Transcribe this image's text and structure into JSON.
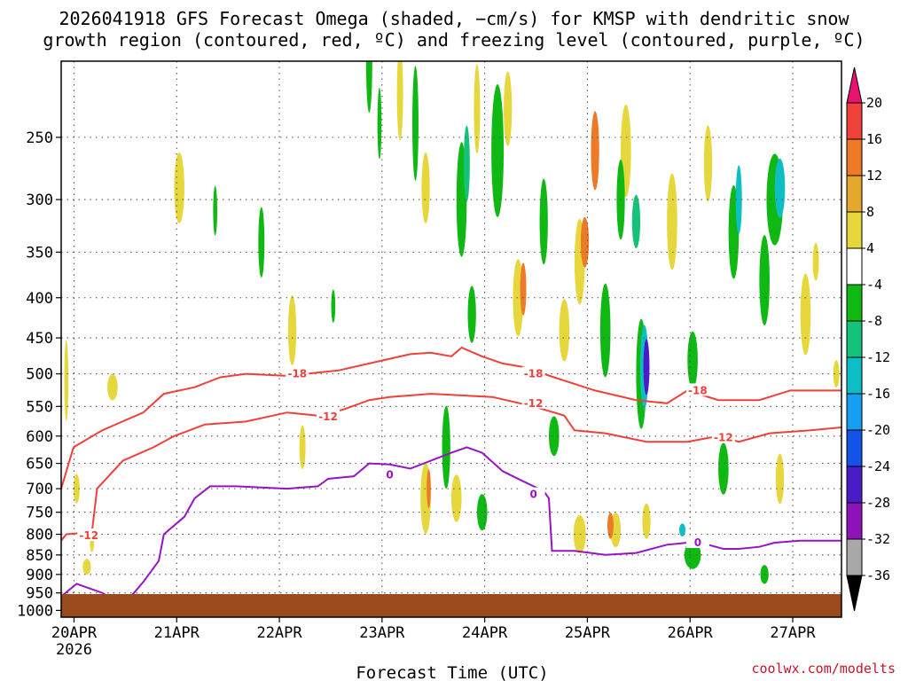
{
  "chart_data": {
    "type": "time-height",
    "title_line1": "2026041918 GFS Forecast Omega (shaded, −cm/s) for KMSP with dendritic snow",
    "title_line2": "growth region (contoured, red, ºC) and freezing level (contoured, purple, ºC)",
    "xlabel": "Forecast Time (UTC)",
    "credit": "coolwx.com/modelts",
    "x_ticks": [
      {
        "label": "20APR",
        "sub": "2026",
        "day": 0.125
      },
      {
        "label": "21APR",
        "day": 1.125
      },
      {
        "label": "22APR",
        "day": 2.125
      },
      {
        "label": "23APR",
        "day": 3.125
      },
      {
        "label": "24APR",
        "day": 4.125
      },
      {
        "label": "25APR",
        "day": 5.125
      },
      {
        "label": "26APR",
        "day": 6.125
      },
      {
        "label": "27APR",
        "day": 7.125
      }
    ],
    "x_range_days": [
      0,
      7.6
    ],
    "y_ticks": [
      "250",
      "300",
      "350",
      "400",
      "450",
      "500",
      "550",
      "600",
      "650",
      "700",
      "750",
      "800",
      "850",
      "900",
      "950",
      "1000"
    ],
    "y_range_hpa": [
      200,
      1020
    ],
    "ground_color": "#9b4a1e",
    "colorbar": {
      "labels": [
        "20",
        "16",
        "12",
        "8",
        "4",
        "-4",
        "-8",
        "-12",
        "-16",
        "-20",
        "-24",
        "-28",
        "-32",
        "-36"
      ],
      "colors": [
        "#e8136e",
        "#f0413a",
        "#ec7a26",
        "#e4a82e",
        "#e6d83c",
        "#ffffff",
        "#10b814",
        "#14c27a",
        "#0dbfc4",
        "#169ff0",
        "#1552e6",
        "#4a1cc8",
        "#8c14b8",
        "#a8a8a8",
        "#000000"
      ]
    },
    "series": [
      {
        "name": "-18C isotherm",
        "color": "#f0403a",
        "label": "-18",
        "points": [
          [
            0,
            700
          ],
          [
            0.12,
            620
          ],
          [
            0.4,
            590
          ],
          [
            0.8,
            560
          ],
          [
            1.0,
            530
          ],
          [
            1.3,
            520
          ],
          [
            1.55,
            505
          ],
          [
            1.8,
            500
          ],
          [
            2.2,
            503
          ],
          [
            2.7,
            495
          ],
          [
            3.0,
            485
          ],
          [
            3.4,
            472
          ],
          [
            3.6,
            470
          ],
          [
            3.8,
            475
          ],
          [
            3.9,
            463
          ],
          [
            4.1,
            475
          ],
          [
            4.3,
            485
          ],
          [
            4.5,
            490
          ],
          [
            4.8,
            505
          ],
          [
            5.2,
            525
          ],
          [
            5.6,
            540
          ],
          [
            5.9,
            545
          ],
          [
            6.1,
            525
          ],
          [
            6.4,
            540
          ],
          [
            6.8,
            540
          ],
          [
            7.1,
            525
          ],
          [
            7.6,
            525
          ]
        ],
        "labels": [
          [
            2.3,
            500
          ],
          [
            4.6,
            500
          ],
          [
            6.2,
            525
          ]
        ]
      },
      {
        "name": "-12C isotherm",
        "color": "#f0403a",
        "label": "-12",
        "points": [
          [
            0,
            815
          ],
          [
            0.05,
            800
          ],
          [
            0.3,
            795
          ],
          [
            0.35,
            700
          ],
          [
            0.6,
            645
          ],
          [
            0.9,
            620
          ],
          [
            1.1,
            600
          ],
          [
            1.4,
            580
          ],
          [
            1.8,
            575
          ],
          [
            2.2,
            560
          ],
          [
            2.5,
            565
          ],
          [
            2.75,
            555
          ],
          [
            3.0,
            540
          ],
          [
            3.2,
            535
          ],
          [
            3.6,
            530
          ],
          [
            4.2,
            535
          ],
          [
            4.6,
            550
          ],
          [
            4.9,
            565
          ],
          [
            5.0,
            590
          ],
          [
            5.3,
            595
          ],
          [
            5.7,
            610
          ],
          [
            6.1,
            610
          ],
          [
            6.4,
            600
          ],
          [
            6.6,
            610
          ],
          [
            6.9,
            595
          ],
          [
            7.3,
            590
          ],
          [
            7.6,
            585
          ]
        ],
        "labels": [
          [
            0.27,
            803
          ],
          [
            2.6,
            567
          ],
          [
            4.6,
            545
          ],
          [
            6.45,
            603
          ]
        ]
      },
      {
        "name": "0C freezing level",
        "color": "#9614c4",
        "label": "0",
        "points": [
          [
            0,
            960
          ],
          [
            0.15,
            925
          ],
          [
            0.4,
            950
          ],
          [
            0.58,
            982
          ],
          [
            0.65,
            970
          ],
          [
            0.8,
            920
          ],
          [
            0.95,
            865
          ],
          [
            1.0,
            800
          ],
          [
            1.2,
            760
          ],
          [
            1.3,
            720
          ],
          [
            1.45,
            695
          ],
          [
            1.7,
            695
          ],
          [
            2.2,
            700
          ],
          [
            2.5,
            695
          ],
          [
            2.6,
            680
          ],
          [
            2.85,
            675
          ],
          [
            3.0,
            650
          ],
          [
            3.2,
            652
          ],
          [
            3.4,
            660
          ],
          [
            3.6,
            645
          ],
          [
            3.8,
            630
          ],
          [
            3.95,
            620
          ],
          [
            4.1,
            630
          ],
          [
            4.3,
            665
          ],
          [
            4.5,
            685
          ],
          [
            4.7,
            705
          ],
          [
            4.75,
            720
          ],
          [
            4.78,
            840
          ],
          [
            5.0,
            840
          ],
          [
            5.3,
            850
          ],
          [
            5.6,
            845
          ],
          [
            5.9,
            825
          ],
          [
            6.1,
            820
          ],
          [
            6.3,
            825
          ],
          [
            6.45,
            835
          ],
          [
            6.6,
            835
          ],
          [
            6.8,
            830
          ],
          [
            6.95,
            820
          ],
          [
            7.2,
            815
          ],
          [
            7.6,
            815
          ]
        ],
        "labels": [
          [
            0.72,
            985
          ],
          [
            3.2,
            672
          ],
          [
            4.6,
            712
          ],
          [
            6.2,
            820
          ]
        ]
      }
    ],
    "shading_blobs": [
      [
        0.05,
        0.02,
        510,
        120,
        "#e6d83c"
      ],
      [
        0.3,
        0.02,
        820,
        45,
        "#e6d83c"
      ],
      [
        0.25,
        0.04,
        880,
        40,
        "#e6d83c"
      ],
      [
        0.5,
        0.05,
        520,
        40,
        "#e6d83c"
      ],
      [
        0.15,
        0.03,
        700,
        60,
        "#e6d83c"
      ],
      [
        1.15,
        0.05,
        290,
        60,
        "#e6d83c"
      ],
      [
        1.5,
        0.02,
        310,
        45,
        "#10b814"
      ],
      [
        1.95,
        0.03,
        340,
        70,
        "#10b814"
      ],
      [
        2.25,
        0.04,
        440,
        90,
        "#e6d83c"
      ],
      [
        2.35,
        0.03,
        620,
        80,
        "#e6d83c"
      ],
      [
        2.65,
        0.02,
        410,
        40,
        "#10b814"
      ],
      [
        3.0,
        0.03,
        200,
        60,
        "#10b814"
      ],
      [
        3.1,
        0.02,
        240,
        50,
        "#10b814"
      ],
      [
        3.3,
        0.03,
        220,
        60,
        "#e6d83c"
      ],
      [
        3.45,
        0.03,
        240,
        80,
        "#10b814"
      ],
      [
        3.55,
        0.04,
        290,
        60,
        "#e6d83c"
      ],
      [
        3.55,
        0.05,
        720,
        150,
        "#e6d83c"
      ],
      [
        3.58,
        0.02,
        700,
        80,
        "#ec7a26"
      ],
      [
        3.75,
        0.04,
        620,
        150,
        "#10b814"
      ],
      [
        3.85,
        0.05,
        720,
        100,
        "#e6d83c"
      ],
      [
        3.9,
        0.05,
        300,
        100,
        "#10b814"
      ],
      [
        3.95,
        0.03,
        270,
        60,
        "#14c27a"
      ],
      [
        4.0,
        0.04,
        420,
        70,
        "#10b814"
      ],
      [
        4.05,
        0.03,
        230,
        60,
        "#e6d83c"
      ],
      [
        4.1,
        0.05,
        750,
        80,
        "#10b814"
      ],
      [
        4.25,
        0.06,
        260,
        100,
        "#10b814"
      ],
      [
        4.35,
        0.04,
        230,
        50,
        "#e6d83c"
      ],
      [
        4.45,
        0.05,
        400,
        90,
        "#e6d83c"
      ],
      [
        4.5,
        0.03,
        390,
        60,
        "#ec7a26"
      ],
      [
        4.7,
        0.04,
        320,
        80,
        "#10b814"
      ],
      [
        4.9,
        0.05,
        440,
        80,
        "#e6d83c"
      ],
      [
        4.8,
        0.05,
        600,
        70,
        "#10b814"
      ],
      [
        5.05,
        0.05,
        360,
        90,
        "#e6d83c"
      ],
      [
        5.1,
        0.04,
        340,
        50,
        "#ec7a26"
      ],
      [
        5.05,
        0.06,
        800,
        90,
        "#e6d83c"
      ],
      [
        5.2,
        0.04,
        260,
        60,
        "#ec7a26"
      ],
      [
        5.3,
        0.05,
        440,
        120,
        "#10b814"
      ],
      [
        5.5,
        0.05,
        260,
        70,
        "#e6d83c"
      ],
      [
        5.45,
        0.04,
        300,
        70,
        "#10b814"
      ],
      [
        5.6,
        0.04,
        320,
        50,
        "#14c27a"
      ],
      [
        5.65,
        0.05,
        500,
        160,
        "#10b814"
      ],
      [
        5.68,
        0.04,
        490,
        120,
        "#0dbfc4"
      ],
      [
        5.7,
        0.03,
        490,
        80,
        "#4a1cc8"
      ],
      [
        5.4,
        0.05,
        790,
        80,
        "#e6d83c"
      ],
      [
        5.35,
        0.03,
        780,
        60,
        "#ec7a26"
      ],
      [
        5.7,
        0.04,
        770,
        80,
        "#e6d83c"
      ],
      [
        5.95,
        0.05,
        320,
        90,
        "#e6d83c"
      ],
      [
        6.15,
        0.05,
        480,
        80,
        "#10b814"
      ],
      [
        6.3,
        0.04,
        270,
        60,
        "#e6d83c"
      ],
      [
        6.15,
        0.08,
        850,
        70,
        "#10b814"
      ],
      [
        6.05,
        0.03,
        790,
        30,
        "#0dbfc4"
      ],
      [
        6.45,
        0.05,
        660,
        100,
        "#10b814"
      ],
      [
        6.55,
        0.05,
        330,
        90,
        "#10b814"
      ],
      [
        6.6,
        0.03,
        300,
        60,
        "#0dbfc4"
      ],
      [
        6.95,
        0.08,
        300,
        80,
        "#10b814"
      ],
      [
        7.0,
        0.05,
        290,
        50,
        "#0dbfc4"
      ],
      [
        7.25,
        0.05,
        420,
        100,
        "#e6d83c"
      ],
      [
        7.35,
        0.03,
        360,
        40,
        "#e6d83c"
      ],
      [
        6.85,
        0.05,
        380,
        100,
        "#10b814"
      ],
      [
        7.0,
        0.04,
        680,
        100,
        "#e6d83c"
      ],
      [
        6.85,
        0.04,
        900,
        50,
        "#10b814"
      ],
      [
        7.55,
        0.03,
        500,
        40,
        "#e6d83c"
      ]
    ]
  }
}
